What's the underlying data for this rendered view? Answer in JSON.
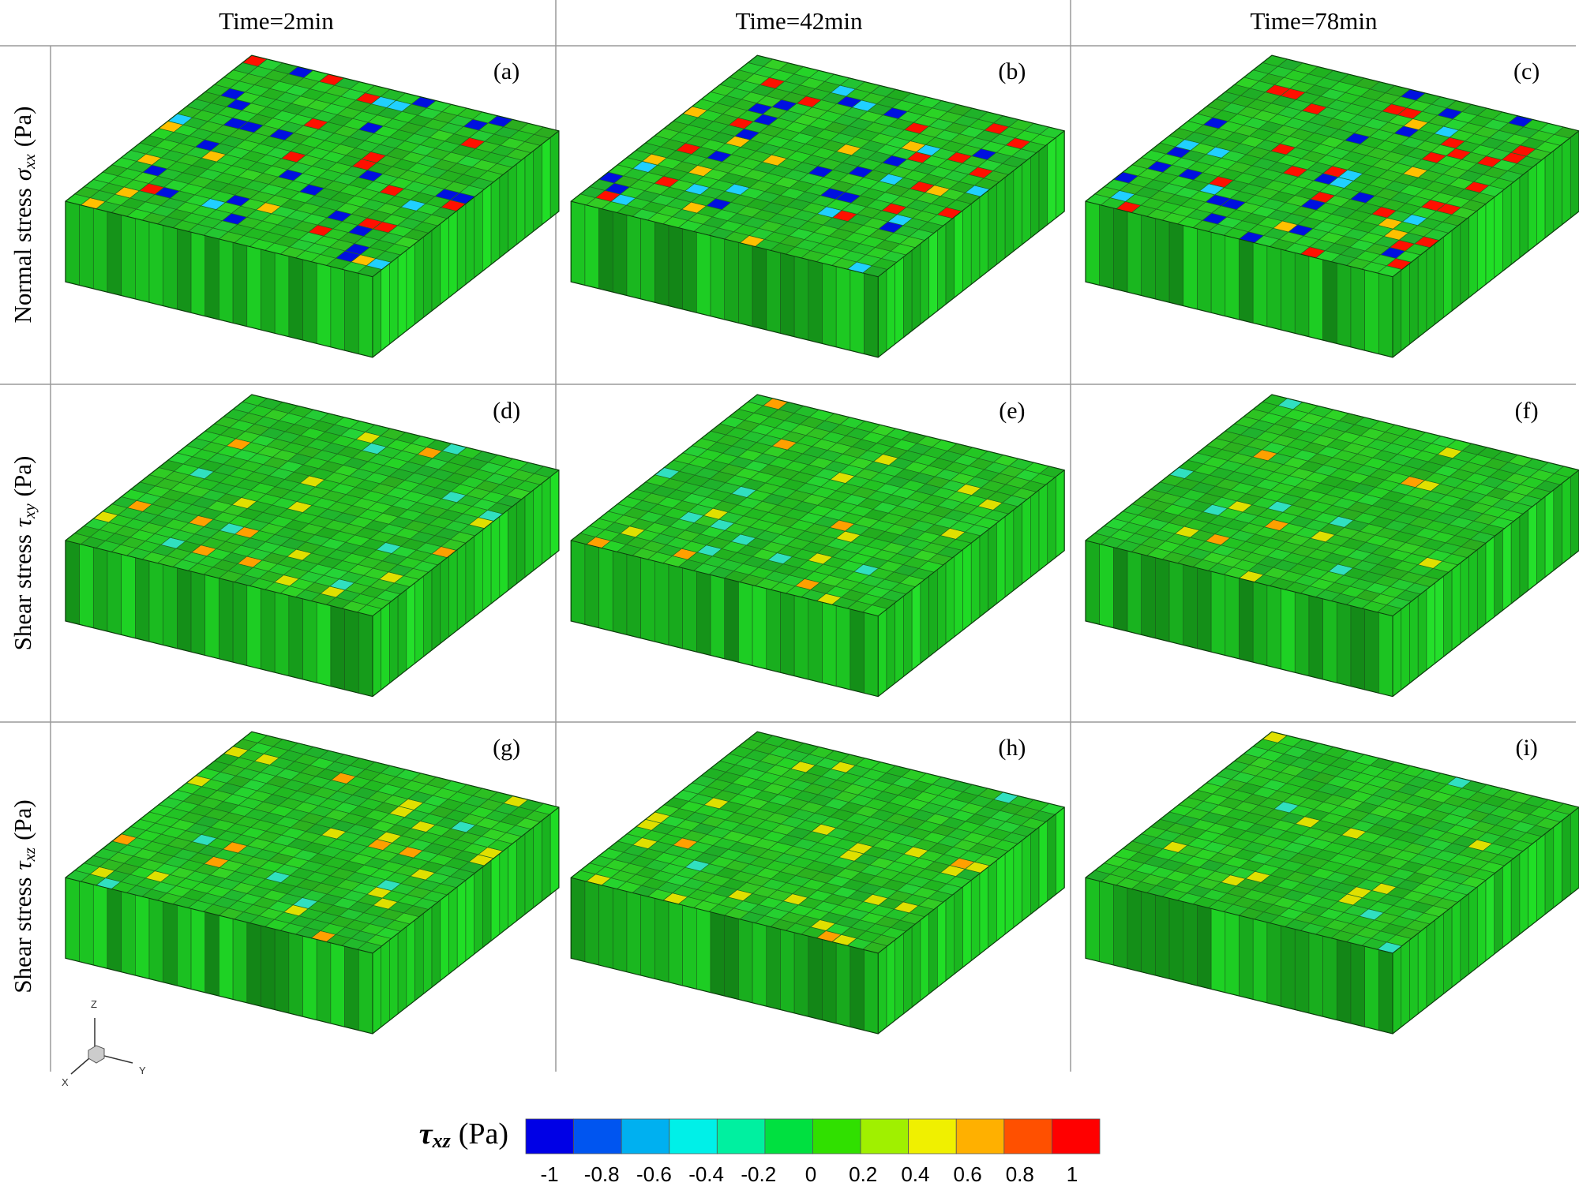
{
  "columns": [
    "Time=2min",
    "Time=42min",
    "Time=78min"
  ],
  "rows": [
    {
      "text": "Normal stress",
      "symbol": "σ",
      "subscript": "xx",
      "unit": "(Pa)"
    },
    {
      "text": "Shear stress",
      "symbol": "τ",
      "subscript": "xy",
      "unit": "(Pa)"
    },
    {
      "text": "Shear stress",
      "symbol": "τ",
      "subscript": "xz",
      "unit": "(Pa)"
    }
  ],
  "panels": [
    "(a)",
    "(b)",
    "(c)",
    "(d)",
    "(e)",
    "(f)",
    "(g)",
    "(h)",
    "(i)"
  ],
  "axes_triad": {
    "z": "Z",
    "x": "X",
    "y": "Y"
  },
  "colorbar": {
    "symbol": "τ",
    "subscript": "xz",
    "unit": "(Pa)",
    "ticks": [
      -1,
      -0.8,
      -0.6,
      -0.4,
      -0.2,
      0,
      0.2,
      0.4,
      0.6,
      0.8,
      1
    ],
    "colors": [
      "#0000e6",
      "#0055f0",
      "#00b0f0",
      "#00f0e8",
      "#00f0a0",
      "#00e040",
      "#30e000",
      "#a0f000",
      "#f0f000",
      "#ffb000",
      "#ff5000",
      "#ff0000"
    ]
  }
}
